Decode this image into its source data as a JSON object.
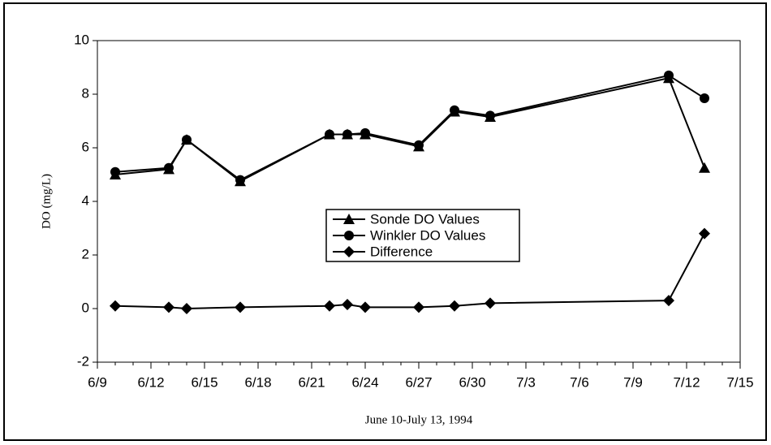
{
  "chart_data": {
    "type": "line",
    "xlabel": "June 10-July 13, 1994",
    "ylabel": "DO (mg/L)",
    "x": [
      "6/10",
      "6/13",
      "6/14",
      "6/17",
      "6/22",
      "6/23",
      "6/24",
      "6/27",
      "6/29",
      "7/1",
      "7/11",
      "7/13"
    ],
    "series": [
      {
        "name": "Sonde DO Values",
        "color": "#000000",
        "marker": "triangle",
        "values": [
          5.0,
          5.2,
          6.3,
          4.75,
          6.5,
          6.5,
          6.5,
          6.05,
          7.35,
          7.15,
          8.6,
          5.25
        ]
      },
      {
        "name": "Winkler DO Values",
        "color": "#000000",
        "marker": "circle",
        "values": [
          5.1,
          5.25,
          6.3,
          4.8,
          6.5,
          6.5,
          6.55,
          6.1,
          7.4,
          7.2,
          8.7,
          7.85
        ]
      },
      {
        "name": "Difference",
        "color": "#000000",
        "marker": "diamond",
        "values": [
          0.1,
          0.05,
          0.0,
          0.05,
          0.1,
          0.15,
          0.05,
          0.05,
          0.1,
          0.2,
          0.3,
          2.8
        ]
      }
    ],
    "xlim": [
      "6/9",
      "7/15"
    ],
    "xticks": [
      "6/9",
      "6/12",
      "6/15",
      "6/18",
      "6/21",
      "6/24",
      "6/27",
      "6/30",
      "7/3",
      "7/6",
      "7/9",
      "7/12",
      "7/15"
    ],
    "ylim": [
      -2,
      10
    ],
    "yticks": [
      -2,
      0,
      2,
      4,
      6,
      8,
      10
    ],
    "grid": false,
    "legend": "center"
  }
}
